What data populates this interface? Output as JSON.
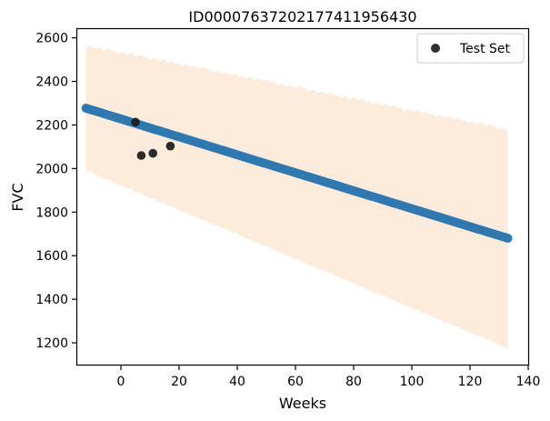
{
  "chart_data": {
    "type": "scatter",
    "title": "ID00007637202177411956430",
    "xlabel": "Weeks",
    "ylabel": "FVC",
    "xlim": [
      -15,
      140
    ],
    "ylim": [
      1100,
      2640
    ],
    "xticks": [
      0,
      20,
      40,
      60,
      80,
      100,
      120,
      140
    ],
    "yticks": [
      1200,
      1400,
      1600,
      1800,
      2000,
      2200,
      2400,
      2600
    ],
    "grid": false,
    "legend_position": "top-right",
    "colors": {
      "prediction": "#2f78b0",
      "band": "#fdebdc",
      "test": "#1a1a1a"
    },
    "prediction": {
      "x_start": -12,
      "x_end": 133,
      "y_start": 2277,
      "y_end": 1680
    },
    "confidence_band": {
      "x": [
        -12,
        133
      ],
      "upper": [
        2565,
        2180
      ],
      "lower": [
        1990,
        1175
      ]
    },
    "series": [
      {
        "name": "Test Set",
        "points": [
          {
            "x": 5,
            "y": 2213
          },
          {
            "x": 7,
            "y": 2060
          },
          {
            "x": 11,
            "y": 2070
          },
          {
            "x": 17,
            "y": 2103
          }
        ]
      }
    ]
  }
}
